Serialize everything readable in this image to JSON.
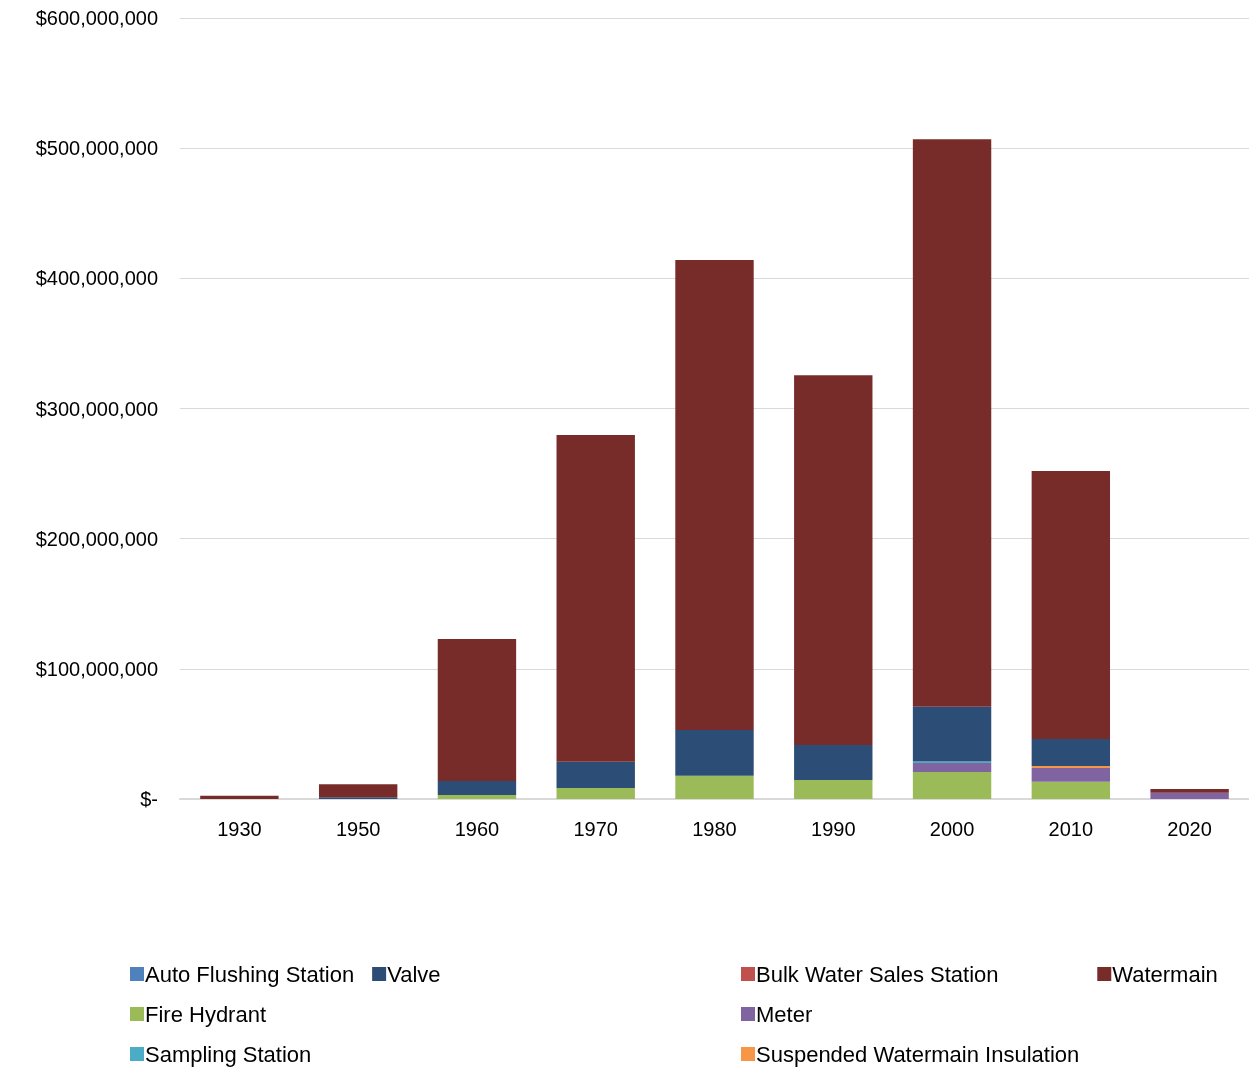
{
  "chart_data": {
    "type": "bar",
    "stacked": true,
    "categories": [
      "1930",
      "1950",
      "1960",
      "1970",
      "1980",
      "1990",
      "2000",
      "2010",
      "2020"
    ],
    "series": [
      {
        "name": "Auto Flushing Station",
        "color": "#4f81bd",
        "values": [
          0,
          0,
          0,
          0,
          0,
          0,
          0,
          0,
          0
        ]
      },
      {
        "name": "Bulk Water Sales Station",
        "color": "#c0504d",
        "values": [
          0,
          0,
          0,
          0,
          0,
          0,
          0,
          0,
          0
        ]
      },
      {
        "name": "Fire Hydrant",
        "color": "#9bbb59",
        "values": [
          0,
          0,
          3000000,
          8400000,
          17800000,
          14600000,
          20700000,
          13200000,
          0
        ]
      },
      {
        "name": "Meter",
        "color": "#8064a2",
        "values": [
          0,
          0,
          0,
          0,
          0,
          0,
          6900000,
          10700000,
          4800000
        ]
      },
      {
        "name": "Sampling Station",
        "color": "#4bacc6",
        "values": [
          0,
          0,
          0,
          0,
          0,
          0,
          1200000,
          0,
          0
        ]
      },
      {
        "name": "Suspended Watermain Insulation",
        "color": "#f79646",
        "values": [
          0,
          0,
          0,
          0,
          0,
          0,
          0,
          1500000,
          0
        ]
      },
      {
        "name": "Valve",
        "color": "#2c4d75",
        "values": [
          0,
          1300000,
          10800000,
          20200000,
          35200000,
          26800000,
          42000000,
          20700000,
          0
        ]
      },
      {
        "name": "Watermain",
        "color": "#772c2a",
        "values": [
          2500000,
          10000000,
          109100000,
          251000000,
          361000000,
          284200000,
          436100000,
          205800000,
          2900000
        ]
      }
    ],
    "ylim": [
      0,
      600000000
    ],
    "yticks": [
      {
        "value": 0,
        "label": "$-"
      },
      {
        "value": 100000000,
        "label": "$100,000,000"
      },
      {
        "value": 200000000,
        "label": "$200,000,000"
      },
      {
        "value": 300000000,
        "label": "$300,000,000"
      },
      {
        "value": 400000000,
        "label": "$400,000,000"
      },
      {
        "value": 500000000,
        "label": "$500,000,000"
      },
      {
        "value": 600000000,
        "label": "$600,000,000"
      }
    ],
    "grid": "y",
    "legend": "bottom"
  }
}
